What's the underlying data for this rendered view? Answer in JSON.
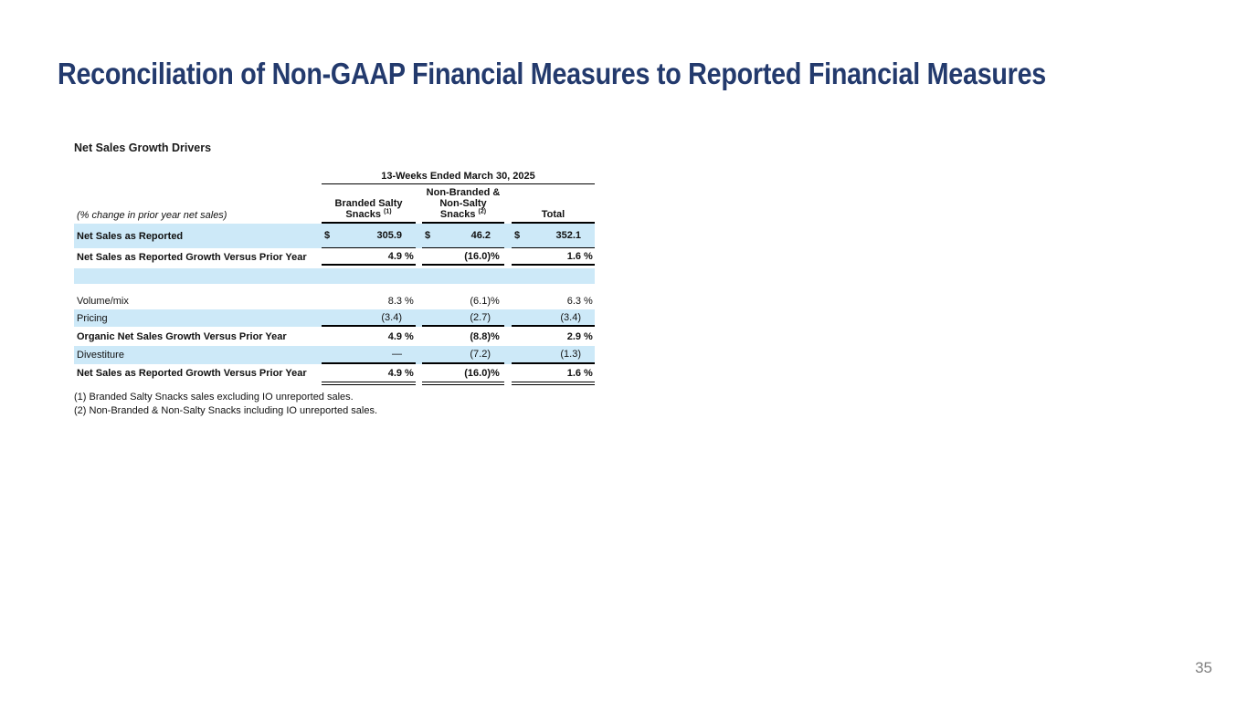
{
  "slide": {
    "title": "Reconciliation of Non-GAAP Financial Measures to Reported Financial Measures",
    "page_number": "35"
  },
  "colors": {
    "title_navy": "#233a6d",
    "row_highlight_blue": "#cde9f8"
  },
  "table": {
    "heading": "Net Sales Growth Drivers",
    "period_header": "13-Weeks Ended March 30, 2025",
    "row_label_note": "(% change in prior year net sales)",
    "columns": [
      {
        "line1": "Branded Salty",
        "line2": "Snacks",
        "sup": "(1)"
      },
      {
        "line1": "Non-Branded &",
        "line2": "Non-Salty",
        "line3": "Snacks",
        "sup": "(2)"
      },
      {
        "label": "Total"
      }
    ],
    "rows": [
      {
        "label": "Net Sales as Reported",
        "cells": [
          {
            "cur": "$",
            "num": "305.9",
            "sfx": ""
          },
          {
            "cur": "$",
            "num": "46.2",
            "sfx": ""
          },
          {
            "cur": "$",
            "num": "352.1",
            "sfx": ""
          }
        ]
      },
      {
        "label": "Net Sales as Reported Growth Versus Prior Year",
        "cells": [
          {
            "cur": "",
            "num": "4.9",
            "sfx": " %"
          },
          {
            "cur": "",
            "num": "(16.0)",
            "sfx": "%"
          },
          {
            "cur": "",
            "num": "1.6",
            "sfx": " %"
          }
        ]
      },
      {
        "label": "Volume/mix",
        "cells": [
          {
            "cur": "",
            "num": "8.3",
            "sfx": " %"
          },
          {
            "cur": "",
            "num": "(6.1)",
            "sfx": "%"
          },
          {
            "cur": "",
            "num": "6.3",
            "sfx": " %"
          }
        ]
      },
      {
        "label": "Pricing",
        "cells": [
          {
            "cur": "",
            "num": "(3.4)",
            "sfx": ""
          },
          {
            "cur": "",
            "num": "(2.7)",
            "sfx": ""
          },
          {
            "cur": "",
            "num": "(3.4)",
            "sfx": ""
          }
        ]
      },
      {
        "label": "Organic Net Sales Growth Versus Prior Year",
        "cells": [
          {
            "cur": "",
            "num": "4.9",
            "sfx": " %"
          },
          {
            "cur": "",
            "num": "(8.8)",
            "sfx": "%"
          },
          {
            "cur": "",
            "num": "2.9",
            "sfx": " %"
          }
        ]
      },
      {
        "label": "Divestiture",
        "cells": [
          {
            "cur": "",
            "num": "—",
            "sfx": ""
          },
          {
            "cur": "",
            "num": "(7.2)",
            "sfx": ""
          },
          {
            "cur": "",
            "num": "(1.3)",
            "sfx": ""
          }
        ]
      },
      {
        "label": "Net Sales as Reported Growth Versus Prior Year",
        "cells": [
          {
            "cur": "",
            "num": "4.9",
            "sfx": " %"
          },
          {
            "cur": "",
            "num": "(16.0)",
            "sfx": "%"
          },
          {
            "cur": "",
            "num": "1.6",
            "sfx": " %"
          }
        ]
      }
    ],
    "footnotes": [
      "(1) Branded Salty Snacks sales excluding IO unreported sales.",
      "(2) Non-Branded & Non-Salty Snacks including IO unreported sales."
    ]
  }
}
